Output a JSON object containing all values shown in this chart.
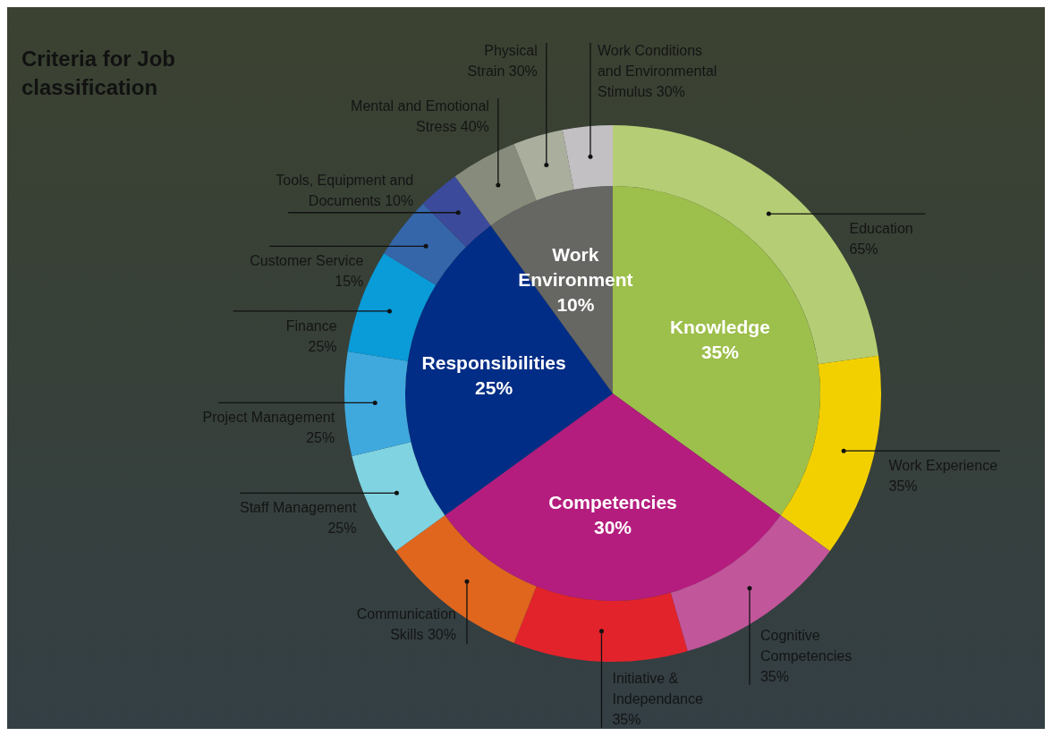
{
  "chart_data": [
    {
      "type": "pie",
      "title": "Criteria for Job classification",
      "categories": [
        "Knowledge",
        "Competencies",
        "Responsibilities",
        "Work Environment"
      ],
      "values": [
        35,
        30,
        25,
        10
      ],
      "value_labels": [
        "35%",
        "30%",
        "25%",
        "10%"
      ],
      "colors": [
        "#9dbf4b",
        "#b41d7e",
        "#022d86",
        "#666663"
      ]
    },
    {
      "type": "donut",
      "categories": [
        "Education 65%",
        "Work Experience 35%",
        "Cognitive Competencies 35%",
        "Initiative & Independance 35%",
        "Communication Skills 30%",
        "Staff Management 25%",
        "Project Management 25%",
        "Finance 25%",
        "Customer Service 15%",
        "Tools, Equipment and Documents 10%",
        "Mental and Emotional Stress 40%",
        "Physical Strain 30%",
        "Work Conditions and Environmental Stimulus 30%"
      ],
      "values": [
        22.75,
        12.25,
        10.5,
        10.5,
        9,
        6.25,
        6.25,
        6.25,
        3.75,
        2.5,
        4,
        3,
        3
      ],
      "colors": [
        "#b5cd74",
        "#f2d000",
        "#c2569b",
        "#e3232b",
        "#e0661e",
        "#80d3e1",
        "#3fa9de",
        "#0a9bd9",
        "#3566aa",
        "#3b4a9b",
        "#868b7b",
        "#a9ae9d",
        "#c3c0c4"
      ]
    }
  ]
}
